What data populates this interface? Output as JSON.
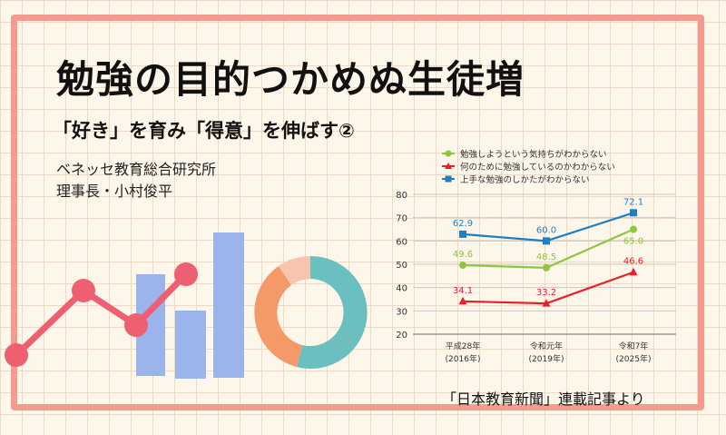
{
  "title": "勉強の目的つかめぬ生徒増",
  "subtitle": "「好き」を育み「得意」を伸ばす②",
  "organization": "ベネッセ教育総合研究所",
  "author": "理事長・小村俊平",
  "source": "「日本教育新聞」連載記事より",
  "colors": {
    "frame": "#f49a8f",
    "green": "#8dc63f",
    "red": "#e8202a",
    "blue": "#1f7fc1"
  },
  "chart_data": {
    "type": "line",
    "categories": [
      {
        "line1": "平成28年",
        "line2": "(2016年)"
      },
      {
        "line1": "令和元年",
        "line2": "(2019年)"
      },
      {
        "line1": "令和7年",
        "line2": "(2025年)"
      }
    ],
    "ylim": [
      20,
      80
    ],
    "yticks": [
      "20",
      "30",
      "40",
      "50",
      "60",
      "70",
      "80"
    ],
    "grid": true,
    "legend_position": "top",
    "series": [
      {
        "name": "勉強しようという気持ちがわからない",
        "color": "#8dc63f",
        "marker": "circle",
        "values": [
          49.6,
          48.5,
          65.0
        ],
        "labels": [
          "49.6",
          "48.5",
          "65.0"
        ]
      },
      {
        "name": "何のために勉強しているのかわからない",
        "color": "#e8202a",
        "marker": "triangle",
        "values": [
          34.1,
          33.2,
          46.6
        ],
        "labels": [
          "34.1",
          "33.2",
          "46.6"
        ]
      },
      {
        "name": "上手な勉強のしかたがわからない",
        "color": "#1f7fc1",
        "marker": "square",
        "values": [
          62.9,
          60.0,
          72.1
        ],
        "labels": [
          "62.9",
          "60.0",
          "72.1"
        ]
      }
    ]
  }
}
